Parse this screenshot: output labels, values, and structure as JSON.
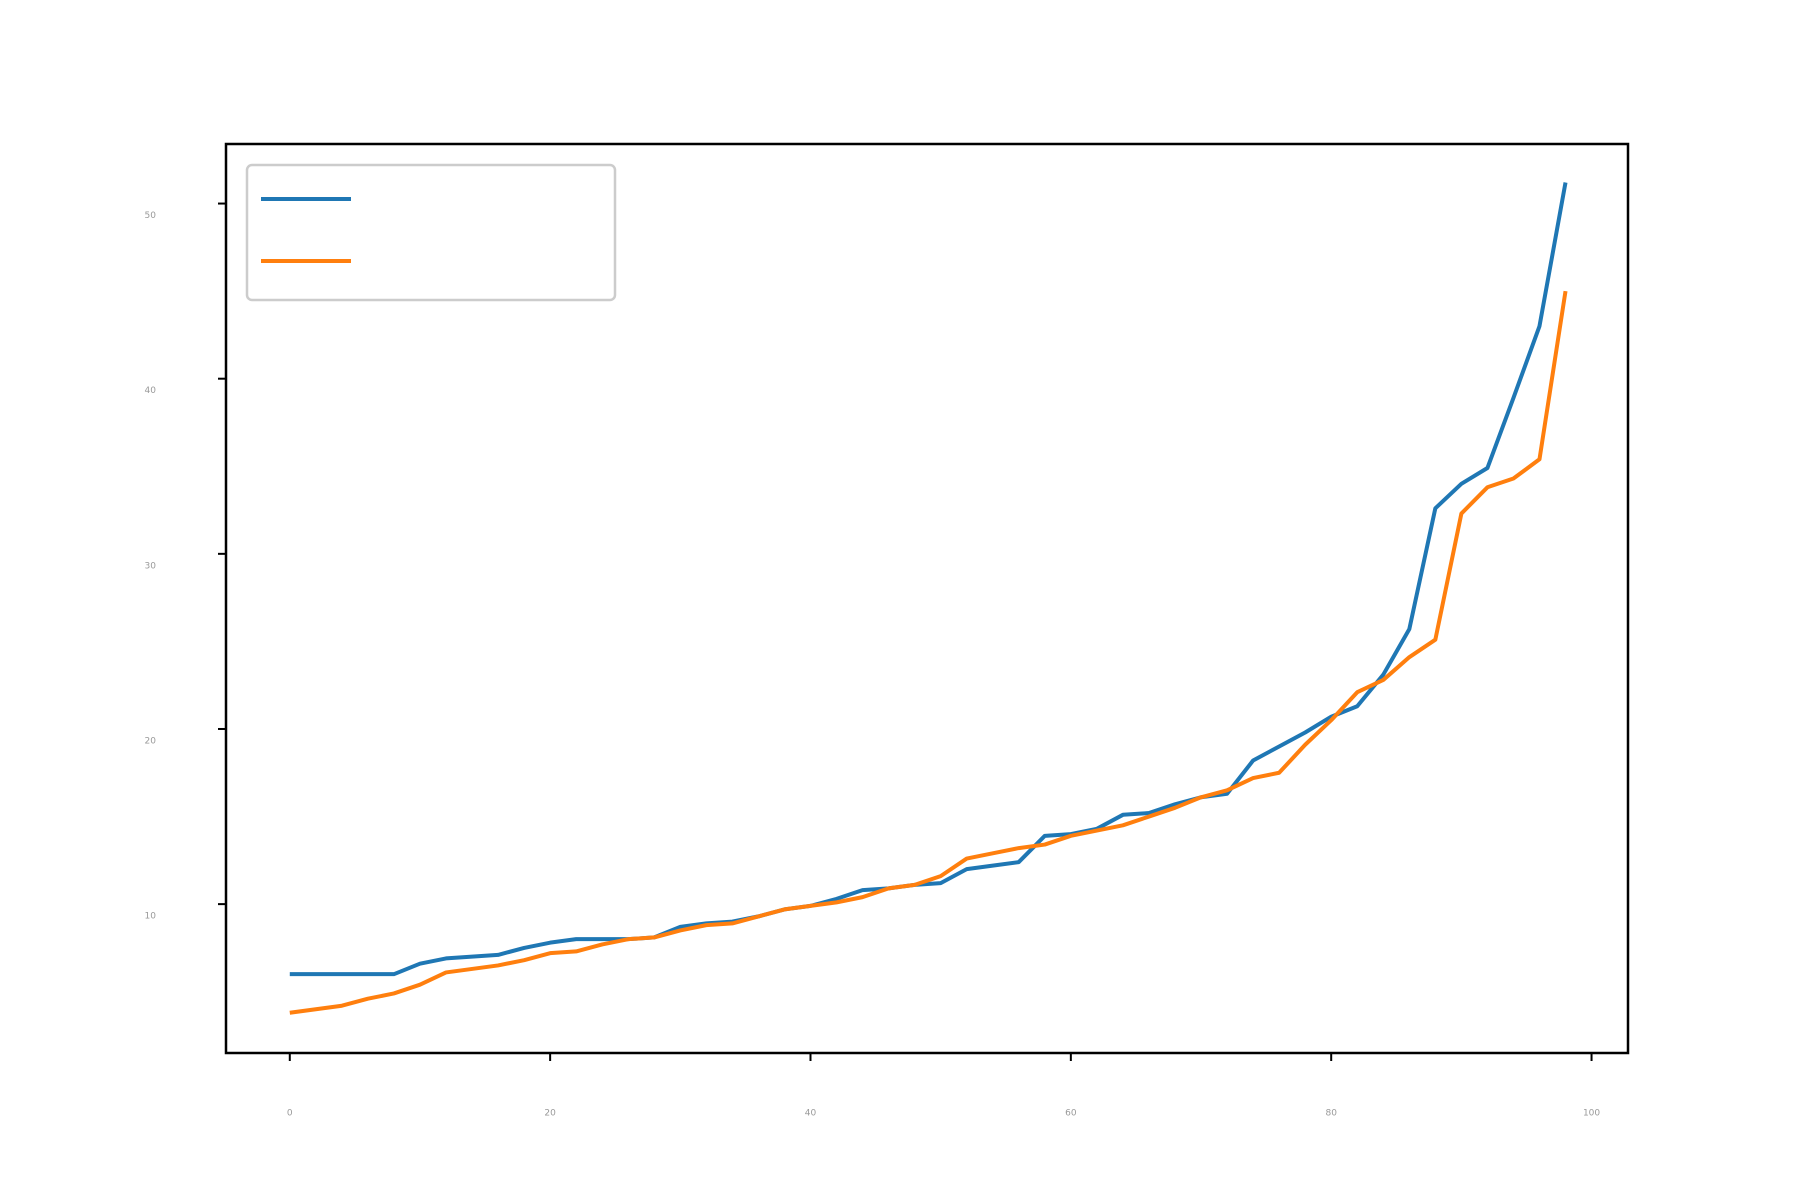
{
  "chart_data": {
    "type": "line",
    "x": [
      0,
      2,
      4,
      6,
      8,
      10,
      12,
      14,
      16,
      18,
      20,
      22,
      24,
      26,
      28,
      30,
      32,
      34,
      36,
      38,
      40,
      42,
      44,
      46,
      48,
      50,
      52,
      54,
      56,
      58,
      60,
      62,
      64,
      66,
      68,
      70,
      72,
      74,
      76,
      78,
      80,
      82,
      84,
      86,
      88,
      90,
      92,
      94,
      96,
      98
    ],
    "series": [
      {
        "color": "#1f77b4",
        "values": [
          6.0,
          6.0,
          6.0,
          6.0,
          6.0,
          6.6,
          6.9,
          7.0,
          7.1,
          7.5,
          7.8,
          8.0,
          8.0,
          8.0,
          8.1,
          8.7,
          8.9,
          9.0,
          9.3,
          9.7,
          9.9,
          10.3,
          10.8,
          10.9,
          11.1,
          11.2,
          12.0,
          12.2,
          12.4,
          13.9,
          14.0,
          14.3,
          15.1,
          15.2,
          15.7,
          16.1,
          16.3,
          18.2,
          19.0,
          19.8,
          20.7,
          21.3,
          23.1,
          25.7,
          32.6,
          34.0,
          34.9,
          38.9,
          43.0,
          51.2
        ]
      },
      {
        "color": "#ff7f0e",
        "values": [
          3.8,
          4.0,
          4.2,
          4.6,
          4.9,
          5.4,
          6.1,
          6.3,
          6.5,
          6.8,
          7.2,
          7.3,
          7.7,
          8.0,
          8.1,
          8.5,
          8.8,
          8.9,
          9.3,
          9.7,
          9.9,
          10.1,
          10.4,
          10.9,
          11.1,
          11.6,
          12.6,
          12.9,
          13.2,
          13.4,
          13.9,
          14.2,
          14.5,
          15.0,
          15.5,
          16.1,
          16.5,
          17.2,
          17.5,
          19.1,
          20.5,
          22.1,
          22.8,
          24.1,
          25.1,
          32.3,
          33.8,
          34.3,
          35.4,
          45.0
        ]
      }
    ],
    "xlim": [
      -4.9,
      102.8
    ],
    "ylim": [
      1.5,
      53.4
    ],
    "xticks": [
      0,
      20,
      40,
      60,
      80,
      100
    ],
    "yticks": [
      10,
      20,
      30,
      40,
      50
    ],
    "legend": "upper left"
  }
}
